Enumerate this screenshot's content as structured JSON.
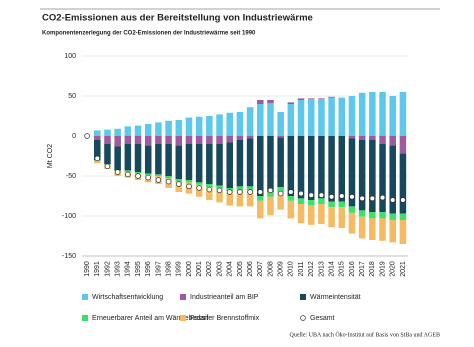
{
  "chart_data": {
    "type": "bar",
    "title": "CO2-Emissionen aus der Bereitstellung von Industriewärme",
    "subtitle": "Komponentenzerlegung der CO2-Emissionen der Industriewärme seit 1990",
    "y_label": "Mt CO2",
    "source": "Quelle: UBA nach Öko-Institut auf Basis von StBa und AGEB",
    "categories": [
      "1990",
      "1991",
      "1992",
      "1993",
      "1994",
      "1995",
      "1996",
      "1997",
      "1998",
      "1999",
      "2000",
      "2001",
      "2002",
      "2003",
      "2004",
      "2005",
      "2006",
      "2007",
      "2008",
      "2009",
      "2010",
      "2011",
      "2012",
      "2013",
      "2014",
      "2015",
      "2016",
      "2017",
      "2018",
      "2019",
      "2020",
      "2021"
    ],
    "ylim": [
      -150,
      100
    ],
    "yticks": [
      -150,
      -100,
      -50,
      0,
      50,
      100
    ],
    "grid": true,
    "series": [
      {
        "name": "Wirtschaftsentwicklung",
        "color": "#5cc8ec",
        "values": [
          0,
          7,
          8,
          9,
          12,
          13,
          15,
          17,
          19,
          20,
          23,
          24,
          25,
          27,
          29,
          30,
          36,
          40,
          41,
          30,
          40,
          45,
          46,
          46,
          48,
          48,
          50,
          54,
          55,
          55,
          50,
          55
        ]
      },
      {
        "name": "Industrieanteil am BIP",
        "color": "#9e5a9e",
        "values": [
          0,
          -5,
          -10,
          -13,
          -10,
          -10,
          -12,
          -10,
          -10,
          -12,
          -10,
          -10,
          -10,
          -10,
          -8,
          -5,
          -3,
          5,
          4,
          -2,
          2,
          2,
          1,
          1,
          1,
          0,
          -3,
          -5,
          -5,
          -10,
          -12,
          -22
        ]
      },
      {
        "name": "Wärmeintensität",
        "color": "#17485c",
        "values": [
          0,
          -25,
          -25,
          -30,
          -33,
          -35,
          -35,
          -38,
          -40,
          -42,
          -45,
          -48,
          -50,
          -52,
          -57,
          -58,
          -60,
          -75,
          -70,
          -62,
          -75,
          -78,
          -80,
          -78,
          -82,
          -82,
          -85,
          -88,
          -90,
          -85,
          -85,
          -75
        ]
      },
      {
        "name": "Erneuerbarer Anteil am Wärmebedarf",
        "color": "#3ee06a",
        "values": [
          0,
          -1,
          -1,
          -1,
          -2,
          -2,
          -2,
          -2,
          -3,
          -3,
          -3,
          -3,
          -4,
          -4,
          -4,
          -5,
          -5,
          -6,
          -6,
          -6,
          -6,
          -7,
          -7,
          -7,
          -7,
          -7,
          -8,
          -8,
          -8,
          -8,
          -8,
          -8
        ]
      },
      {
        "name": "Fossiler Brennstoffmix",
        "color": "#f6bb62",
        "values": [
          0,
          -3,
          -5,
          -6,
          -7,
          -8,
          -9,
          -10,
          -12,
          -13,
          -14,
          -15,
          -16,
          -17,
          -18,
          -20,
          -20,
          -22,
          -23,
          -22,
          -22,
          -24,
          -24,
          -25,
          -25,
          -26,
          -26,
          -27,
          -27,
          -28,
          -28,
          -30
        ]
      }
    ],
    "total": {
      "name": "Gesamt",
      "values": [
        0,
        -28,
        -38,
        -45,
        -48,
        -50,
        -52,
        -55,
        -57,
        -60,
        -63,
        -65,
        -67,
        -68,
        -70,
        -70,
        -70,
        -70,
        -68,
        -72,
        -70,
        -72,
        -74,
        -74,
        -76,
        -75,
        -76,
        -78,
        -78,
        -77,
        -80,
        -80
      ]
    }
  }
}
